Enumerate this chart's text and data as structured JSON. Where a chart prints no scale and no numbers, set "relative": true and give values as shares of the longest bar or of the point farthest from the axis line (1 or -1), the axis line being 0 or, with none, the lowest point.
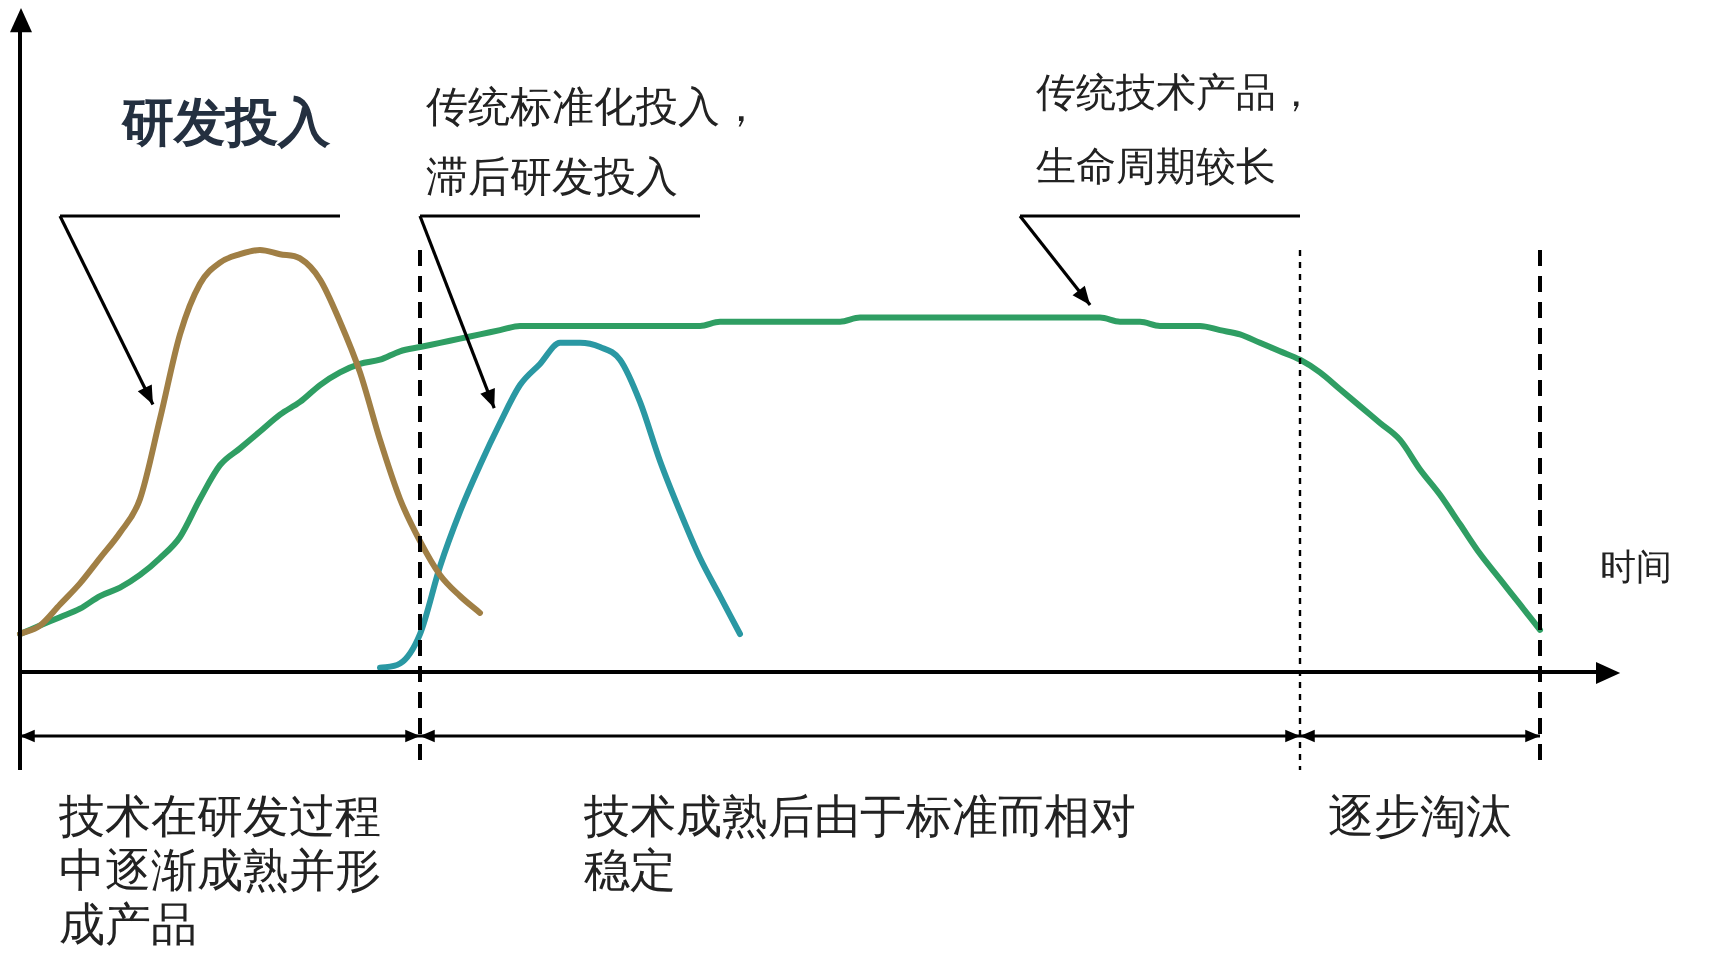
{
  "chart_data": {
    "type": "line",
    "relative": true,
    "xlabel": "时间",
    "categories": [
      null,
      null,
      null,
      null,
      null,
      null,
      null,
      null,
      null,
      null,
      null,
      null,
      null,
      null,
      null,
      null,
      null,
      null,
      null,
      null,
      null,
      null,
      null,
      null,
      null,
      null,
      null,
      null,
      null,
      null,
      null,
      null,
      null,
      null,
      null,
      null,
      null,
      null,
      null,
      null,
      null,
      null,
      null,
      null,
      null,
      null,
      null,
      null,
      null,
      null,
      null,
      null,
      null,
      null,
      null,
      null,
      null,
      null,
      null,
      null,
      null,
      null,
      null,
      null,
      null,
      null,
      null,
      null,
      null,
      null,
      null,
      null,
      null,
      null,
      null,
      null,
      null,
      null,
      null,
      null,
      null
    ],
    "series": [
      {
        "name": "研发投入",
        "color": "#a07f45",
        "values": [
          0.09,
          0.11,
          0.16,
          0.21,
          0.27,
          0.33,
          0.41,
          0.6,
          0.8,
          0.92,
          0.97,
          0.99,
          1,
          0.99,
          0.98,
          0.93,
          0.83,
          0.71,
          0.55,
          0.41,
          0.31,
          0.23,
          0.18,
          0.14,
          null,
          null,
          null,
          null,
          null,
          null,
          null,
          null,
          null,
          null,
          null,
          null,
          null,
          null,
          null,
          null,
          null,
          null,
          null,
          null,
          null,
          null,
          null,
          null,
          null,
          null,
          null,
          null,
          null,
          null,
          null,
          null,
          null,
          null,
          null,
          null,
          null,
          null,
          null,
          null,
          null,
          null,
          null,
          null,
          null,
          null,
          null,
          null,
          null,
          null,
          null,
          null,
          null,
          null,
          null,
          null,
          null
        ]
      },
      {
        "name": "传统标准化投入，滞后研发投入",
        "color": "#2a98a3",
        "values": [
          null,
          null,
          null,
          null,
          null,
          null,
          null,
          null,
          null,
          null,
          null,
          null,
          null,
          null,
          null,
          null,
          null,
          null,
          0.01,
          0.02,
          0.09,
          0.25,
          0.38,
          0.49,
          0.59,
          0.68,
          0.73,
          0.78,
          0.78,
          0.77,
          0.74,
          0.64,
          0.5,
          0.38,
          0.27,
          0.18,
          0.09,
          null,
          null,
          null,
          null,
          null,
          null,
          null,
          null,
          null,
          null,
          null,
          null,
          null,
          null,
          null,
          null,
          null,
          null,
          null,
          null,
          null,
          null,
          null,
          null,
          null,
          null,
          null,
          null,
          null,
          null,
          null,
          null,
          null,
          null,
          null,
          null,
          null,
          null,
          null,
          null,
          null,
          null,
          null,
          null
        ]
      },
      {
        "name": "传统技术产品，生命周期较长",
        "color": "#2f9e63",
        "values": [
          0.09,
          0.11,
          0.13,
          0.15,
          0.18,
          0.2,
          0.23,
          0.27,
          0.32,
          0.41,
          0.49,
          0.53,
          0.57,
          0.61,
          0.64,
          0.68,
          0.71,
          0.73,
          0.74,
          0.76,
          0.77,
          0.78,
          0.79,
          0.8,
          0.81,
          0.82,
          0.82,
          0.82,
          0.82,
          0.82,
          0.82,
          0.82,
          0.82,
          0.82,
          0.82,
          0.83,
          0.83,
          0.83,
          0.83,
          0.83,
          0.83,
          0.83,
          0.84,
          0.84,
          0.84,
          0.84,
          0.84,
          0.84,
          0.84,
          0.84,
          0.84,
          0.84,
          0.84,
          0.84,
          0.84,
          0.83,
          0.83,
          0.82,
          0.82,
          0.82,
          0.81,
          0.8,
          0.78,
          0.76,
          0.74,
          0.71,
          0.67,
          0.63,
          0.59,
          0.55,
          0.48,
          0.42,
          0.35,
          0.28,
          0.22,
          0.16,
          0.1,
          null,
          null,
          null,
          null
        ]
      }
    ],
    "annotations": [
      "技术在研发过程中逐渐成熟并形成产品",
      "技术成熟后由于标准而相对稳定",
      "逐步淘汰"
    ]
  }
}
